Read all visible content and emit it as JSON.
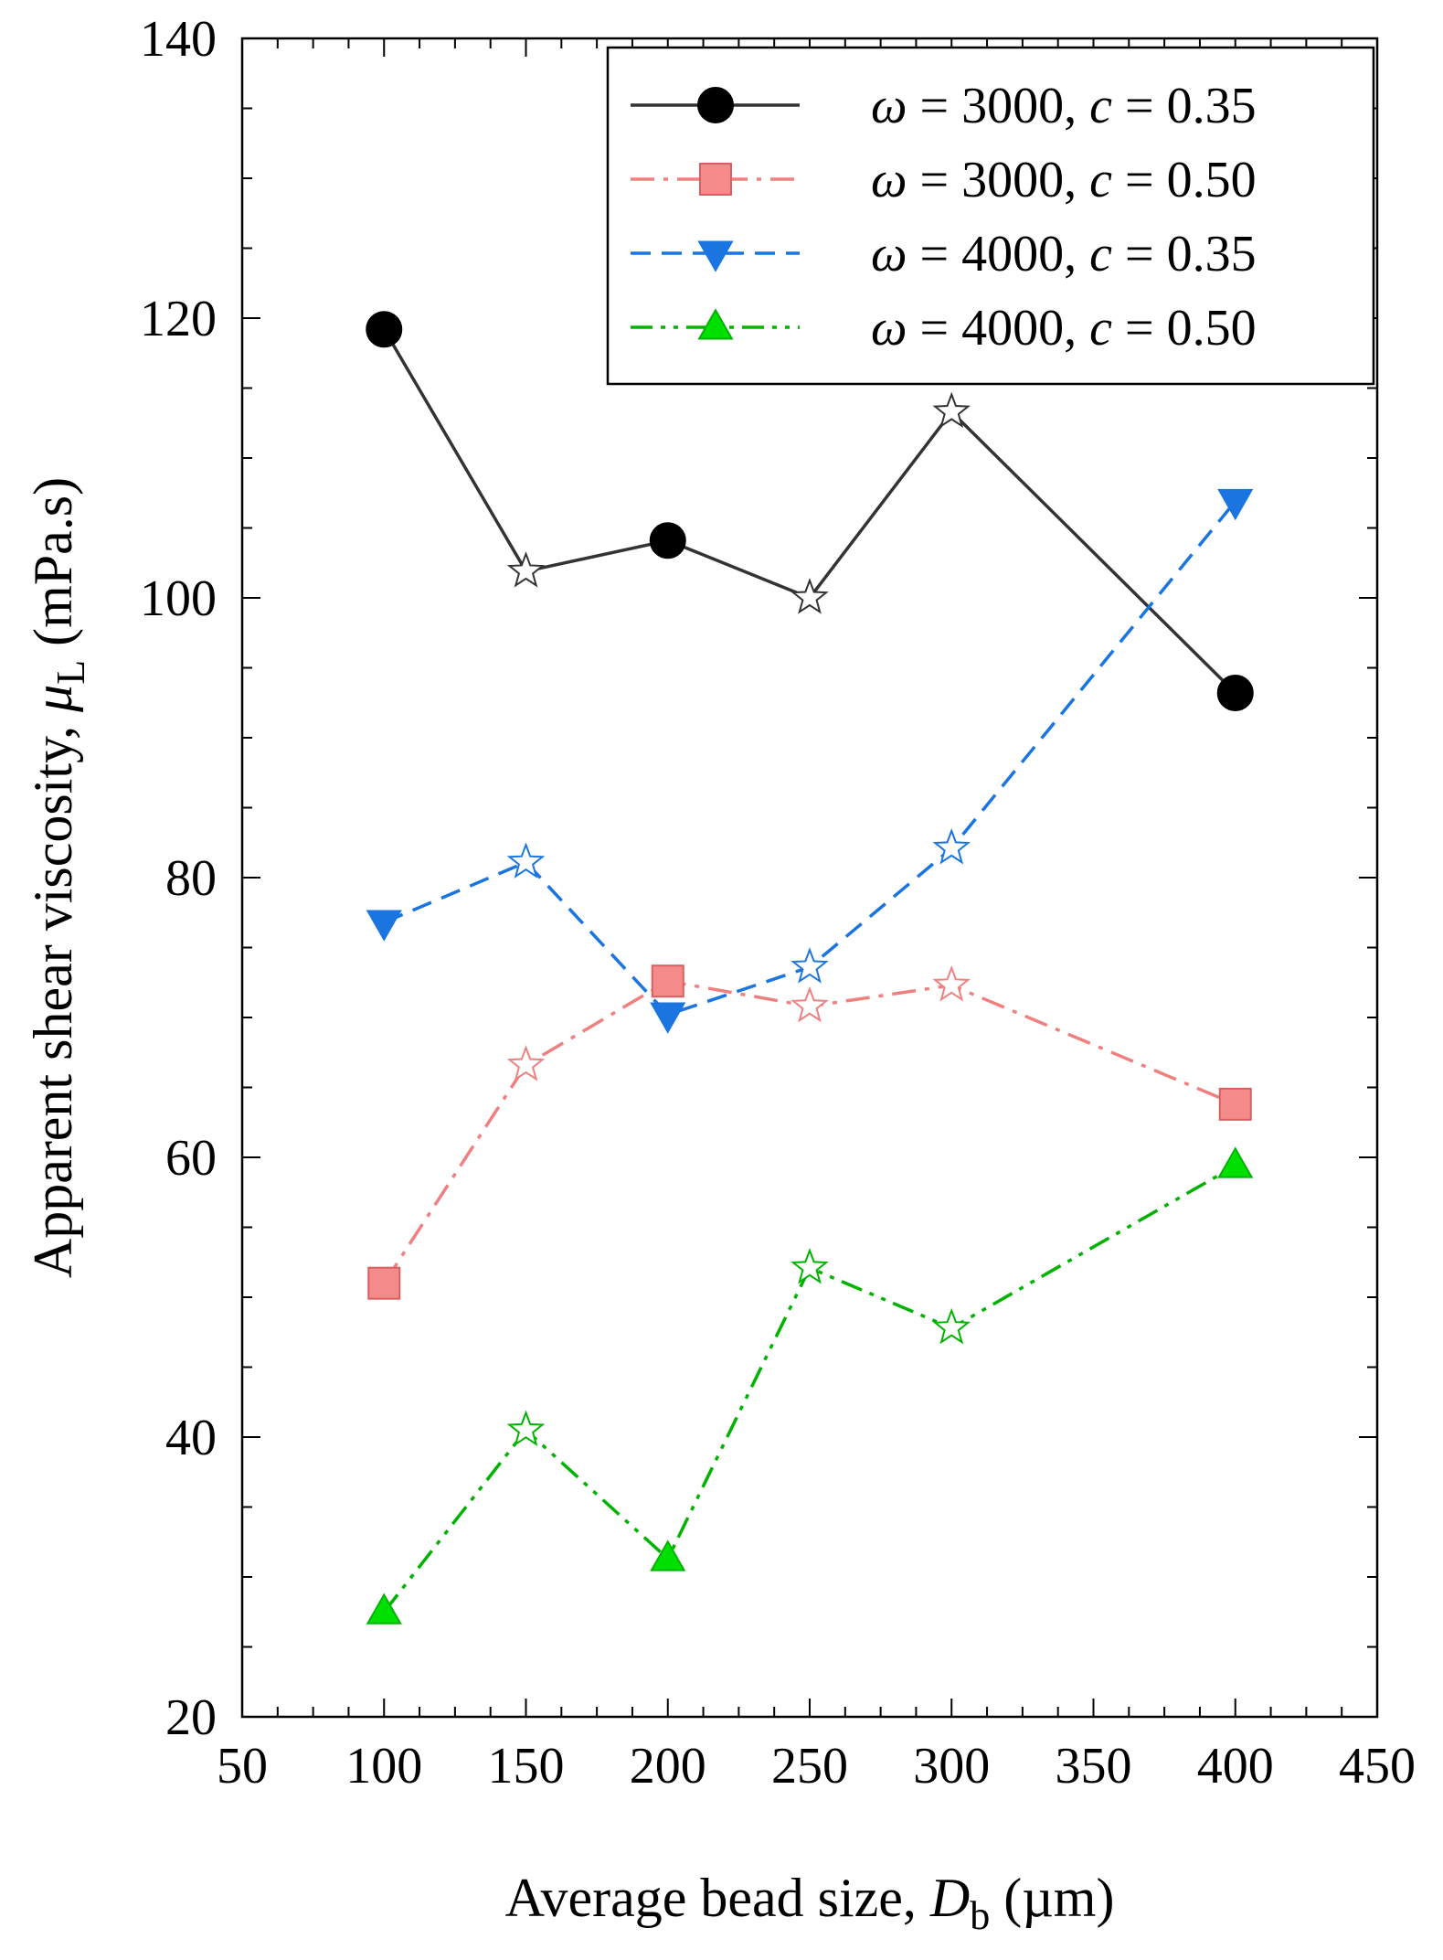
{
  "chart_data": {
    "type": "line",
    "title": "",
    "xlabel": {
      "prefix": "Average bead size, ",
      "symbol": "D",
      "subscript": "b",
      "suffix": " (µm)"
    },
    "ylabel": {
      "prefix": "Apparent shear viscosity, ",
      "symbol": "μ",
      "subscript": "L",
      "suffix": " (mPa.s)"
    },
    "xlim": [
      50,
      450
    ],
    "ylim": [
      20,
      140
    ],
    "x_ticks": [
      50,
      100,
      150,
      200,
      250,
      300,
      350,
      400,
      450
    ],
    "y_ticks": [
      20,
      40,
      60,
      80,
      100,
      120,
      140
    ],
    "x_tick_labels": [
      "50",
      "100",
      "150",
      "200",
      "250",
      "300",
      "350",
      "400",
      "450"
    ],
    "y_tick_labels": [
      "20",
      "40",
      "60",
      "80",
      "100",
      "120",
      "140"
    ],
    "legend_position": "top-right",
    "series": [
      {
        "name": "ω = 3000, c = 0.35",
        "label_parts": [
          "ω",
          " = 3000, ",
          "c",
          " = 0.35"
        ],
        "color": "#333333",
        "marker": "circle",
        "marker_fill": "#000000",
        "dash": "solid",
        "x": [
          100,
          150,
          200,
          250,
          300,
          400
        ],
        "y": [
          119.2,
          101.9,
          104.1,
          100.0,
          113.3,
          93.2
        ],
        "star": [
          false,
          true,
          false,
          true,
          true,
          false
        ]
      },
      {
        "name": "ω = 3000, c = 0.50",
        "label_parts": [
          "ω",
          " = 3000, ",
          "c",
          " = 0.50"
        ],
        "color": "#f08080",
        "marker": "square",
        "marker_fill": "#f58a8a",
        "dash": "dashdot",
        "x": [
          100,
          150,
          200,
          250,
          300,
          400
        ],
        "y": [
          51.0,
          66.6,
          72.6,
          70.8,
          72.3,
          63.8
        ],
        "star": [
          false,
          true,
          false,
          true,
          true,
          false
        ]
      },
      {
        "name": "ω = 4000, c = 0.35",
        "label_parts": [
          "ω",
          " = 4000, ",
          "c",
          " = 0.35"
        ],
        "color": "#1a75e0",
        "marker": "triangle-down",
        "marker_fill": "#1a75e0",
        "dash": "dashed",
        "x": [
          100,
          150,
          200,
          250,
          300,
          400
        ],
        "y": [
          76.8,
          81.1,
          70.2,
          73.6,
          82.1,
          106.9
        ],
        "star": [
          false,
          true,
          false,
          true,
          true,
          false
        ]
      },
      {
        "name": "ω = 4000, c = 0.50",
        "label_parts": [
          "ω",
          " = 4000, ",
          "c",
          " = 0.50"
        ],
        "color": "#00b300",
        "marker": "triangle-up",
        "marker_fill": "#00e000",
        "dash": "dashdotdot",
        "x": [
          100,
          150,
          200,
          250,
          300,
          400
        ],
        "y": [
          27.5,
          40.5,
          31.3,
          52.1,
          47.8,
          59.4
        ],
        "star": [
          false,
          true,
          false,
          true,
          true,
          false
        ]
      }
    ]
  }
}
